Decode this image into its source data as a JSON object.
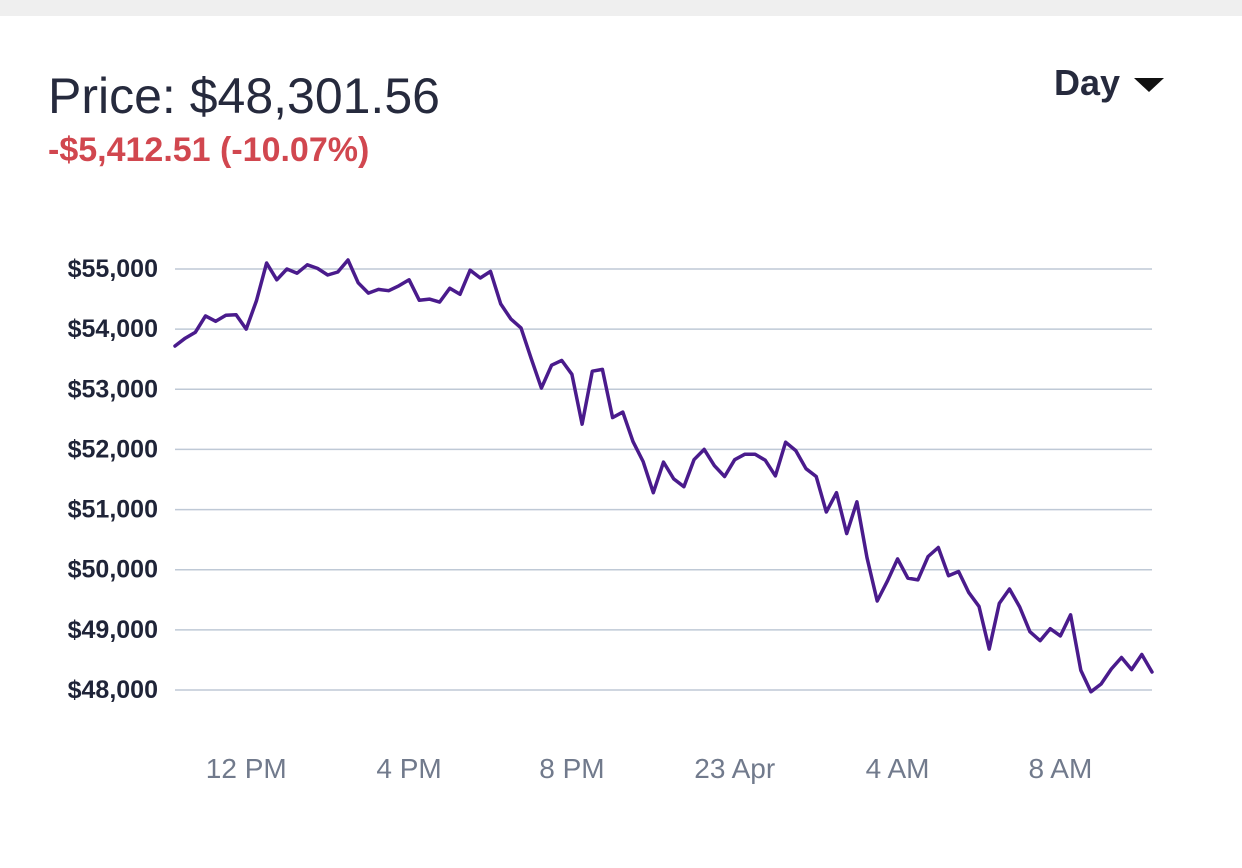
{
  "header": {
    "price_text": "Price: $48,301.56",
    "change_text": "-$5,412.51 (-10.07%)",
    "range_label": "Day"
  },
  "colors": {
    "line": "#4a1b8c",
    "grid": "#bfc9d6",
    "negative": "#d1474f",
    "text": "#262a3d",
    "axis_text": "#717a8c"
  },
  "chart_data": {
    "type": "line",
    "title": "",
    "xlabel": "",
    "ylabel": "",
    "ylim": [
      48000,
      55000
    ],
    "grid": true,
    "y_ticks": [
      {
        "value": 55000,
        "label": "$55,000"
      },
      {
        "value": 54000,
        "label": "$54,000"
      },
      {
        "value": 53000,
        "label": "$53,000"
      },
      {
        "value": 52000,
        "label": "$52,000"
      },
      {
        "value": 51000,
        "label": "$51,000"
      },
      {
        "value": 50000,
        "label": "$50,000"
      },
      {
        "value": 49000,
        "label": "$49,000"
      },
      {
        "value": 48000,
        "label": "$48,000"
      }
    ],
    "x_ticks": [
      {
        "x": 12,
        "label": "12 PM"
      },
      {
        "x": 16,
        "label": "4 PM"
      },
      {
        "x": 20,
        "label": "8 PM"
      },
      {
        "x": 24,
        "label": "23 Apr"
      },
      {
        "x": 28,
        "label": "4 AM"
      },
      {
        "x": 32,
        "label": "8 AM"
      }
    ],
    "xlim": [
      10.25,
      34.25
    ],
    "series": [
      {
        "points": [
          [
            10.25,
            53720
          ],
          [
            10.5,
            53850
          ],
          [
            10.75,
            53950
          ],
          [
            11.0,
            54220
          ],
          [
            11.25,
            54130
          ],
          [
            11.5,
            54230
          ],
          [
            11.75,
            54240
          ],
          [
            12.0,
            54000
          ],
          [
            12.25,
            54470
          ],
          [
            12.5,
            55100
          ],
          [
            12.75,
            54820
          ],
          [
            13.0,
            55000
          ],
          [
            13.25,
            54930
          ],
          [
            13.5,
            55070
          ],
          [
            13.75,
            55010
          ],
          [
            14.0,
            54900
          ],
          [
            14.25,
            54950
          ],
          [
            14.5,
            55150
          ],
          [
            14.75,
            54770
          ],
          [
            15.0,
            54600
          ],
          [
            15.25,
            54660
          ],
          [
            15.5,
            54640
          ],
          [
            15.75,
            54720
          ],
          [
            16.0,
            54820
          ],
          [
            16.25,
            54480
          ],
          [
            16.5,
            54500
          ],
          [
            16.75,
            54450
          ],
          [
            17.0,
            54680
          ],
          [
            17.25,
            54580
          ],
          [
            17.5,
            54980
          ],
          [
            17.75,
            54850
          ],
          [
            18.0,
            54960
          ],
          [
            18.25,
            54420
          ],
          [
            18.5,
            54170
          ],
          [
            18.75,
            54020
          ],
          [
            19.0,
            53510
          ],
          [
            19.25,
            53020
          ],
          [
            19.5,
            53400
          ],
          [
            19.75,
            53480
          ],
          [
            20.0,
            53250
          ],
          [
            20.25,
            52420
          ],
          [
            20.5,
            53300
          ],
          [
            20.75,
            53330
          ],
          [
            21.0,
            52530
          ],
          [
            21.25,
            52620
          ],
          [
            21.5,
            52130
          ],
          [
            21.75,
            51800
          ],
          [
            22.0,
            51280
          ],
          [
            22.25,
            51790
          ],
          [
            22.5,
            51510
          ],
          [
            22.75,
            51380
          ],
          [
            23.0,
            51830
          ],
          [
            23.25,
            52000
          ],
          [
            23.5,
            51730
          ],
          [
            23.75,
            51550
          ],
          [
            24.0,
            51830
          ],
          [
            24.25,
            51920
          ],
          [
            24.5,
            51920
          ],
          [
            24.75,
            51820
          ],
          [
            25.0,
            51560
          ],
          [
            25.25,
            52120
          ],
          [
            25.5,
            51980
          ],
          [
            25.75,
            51680
          ],
          [
            26.0,
            51550
          ],
          [
            26.25,
            50960
          ],
          [
            26.5,
            51280
          ],
          [
            26.75,
            50600
          ],
          [
            27.0,
            51130
          ],
          [
            27.25,
            50200
          ],
          [
            27.5,
            49480
          ],
          [
            27.75,
            49810
          ],
          [
            28.0,
            50180
          ],
          [
            28.25,
            49860
          ],
          [
            28.5,
            49830
          ],
          [
            28.75,
            50220
          ],
          [
            29.0,
            50370
          ],
          [
            29.25,
            49900
          ],
          [
            29.5,
            49970
          ],
          [
            29.75,
            49620
          ],
          [
            30.0,
            49390
          ],
          [
            30.25,
            48680
          ],
          [
            30.5,
            49440
          ],
          [
            30.75,
            49680
          ],
          [
            31.0,
            49380
          ],
          [
            31.25,
            48970
          ],
          [
            31.5,
            48820
          ],
          [
            31.75,
            49020
          ],
          [
            32.0,
            48900
          ],
          [
            32.25,
            49250
          ],
          [
            32.5,
            48330
          ],
          [
            32.75,
            47970
          ],
          [
            33.0,
            48100
          ],
          [
            33.25,
            48350
          ],
          [
            33.5,
            48540
          ],
          [
            33.75,
            48340
          ],
          [
            34.0,
            48590
          ],
          [
            34.25,
            48300
          ]
        ]
      }
    ]
  }
}
